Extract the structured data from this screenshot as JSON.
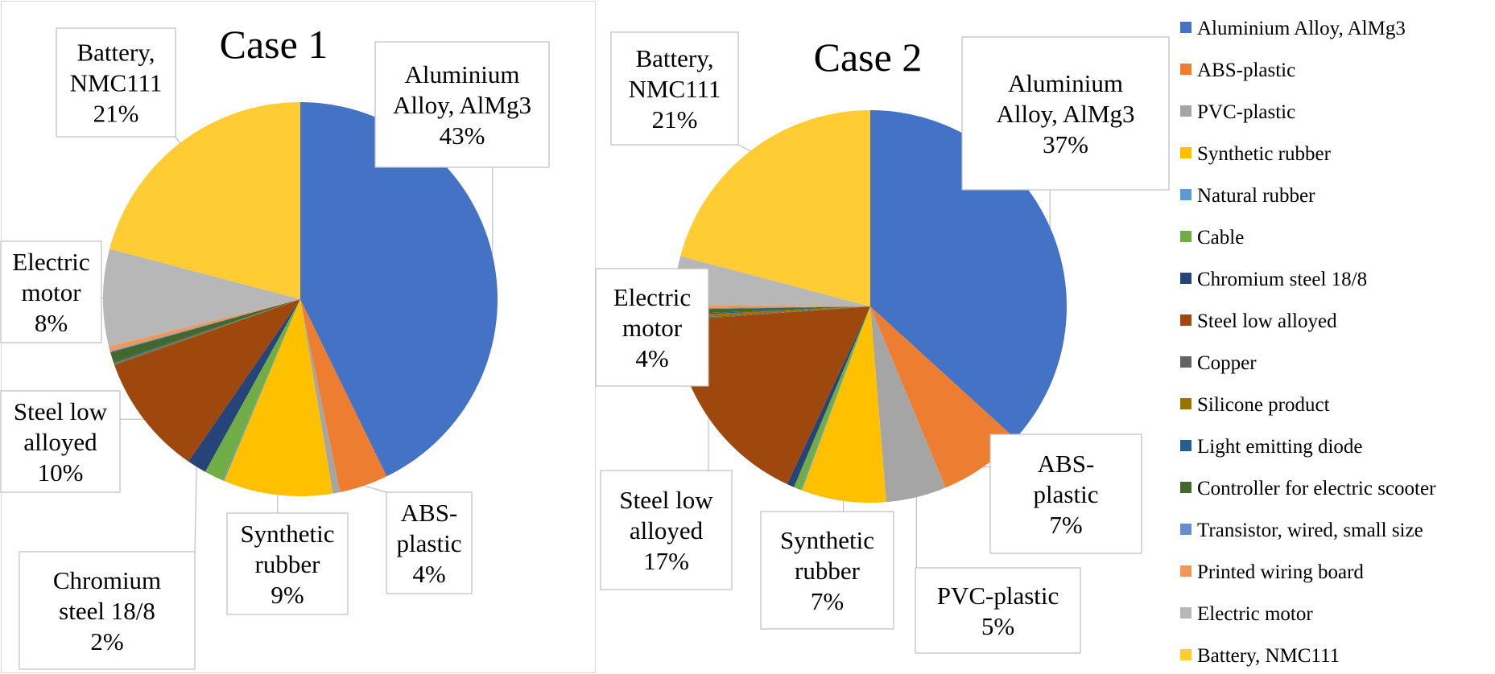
{
  "colors": {
    "Aluminium Alloy, AlMg3": "#4472c4",
    "ABS-plastic": "#ed7d31",
    "PVC-plastic": "#a5a5a5",
    "Synthetic rubber": "#ffc000",
    "Natural rubber": "#5b9bd5",
    "Cable": "#70ad47",
    "Chromium steel 18/8": "#264478",
    "Steel low alloyed": "#9e480e",
    "Copper": "#636363",
    "Silicone product": "#997300",
    "Light emitting diode": "#255e91",
    "Controller for electric scooter": "#43682b",
    "Transistor, wired, small size": "#698ed0",
    "Printed wiring board": "#f1975a",
    "Electric motor": "#b7b7b7",
    "Battery, NMC111": "#ffcd33"
  },
  "chart_data": [
    {
      "type": "pie",
      "title": "Case 1",
      "categories": [
        "Aluminium Alloy, AlMg3",
        "ABS-plastic",
        "PVC-plastic",
        "Synthetic rubber",
        "Natural rubber",
        "Cable",
        "Chromium steel 18/8",
        "Steel low alloyed",
        "Copper",
        "Silicone product",
        "Light emitting diode",
        "Controller for electric scooter",
        "Transistor, wired, small size",
        "Printed wiring board",
        "Electric motor",
        "Battery, NMC111"
      ],
      "values": [
        43,
        4,
        0.6,
        9,
        0.1,
        1.6,
        1.6,
        10,
        0.1,
        0.1,
        0.1,
        0.8,
        0.1,
        0.4,
        8,
        21
      ],
      "labels": [
        {
          "lines": [
            "Aluminium",
            "Alloy, AlMg3",
            "43%"
          ]
        },
        {
          "lines": [
            "ABS-",
            "plastic",
            "4%"
          ]
        },
        {
          "lines": [
            "Synthetic",
            "rubber",
            "9%"
          ]
        },
        {
          "lines": [
            "Chromium",
            "steel 18/8",
            "2%"
          ]
        },
        {
          "lines": [
            "Steel low",
            "alloyed",
            "10%"
          ]
        },
        {
          "lines": [
            "Electric",
            "motor",
            "8%"
          ]
        },
        {
          "lines": [
            "Battery,",
            "NMC111",
            "21%"
          ]
        }
      ]
    },
    {
      "type": "pie",
      "title": "Case 2",
      "categories": [
        "Aluminium Alloy, AlMg3",
        "ABS-plastic",
        "PVC-plastic",
        "Synthetic rubber",
        "Natural rubber",
        "Cable",
        "Chromium steel 18/8",
        "Steel low alloyed",
        "Copper",
        "Silicone product",
        "Light emitting diode",
        "Controller for electric scooter",
        "Transistor, wired, small size",
        "Printed wiring board",
        "Electric motor",
        "Battery, NMC111"
      ],
      "values": [
        37,
        7,
        5,
        7,
        0.1,
        0.6,
        0.6,
        17,
        0.1,
        0.3,
        0.1,
        0.4,
        0.1,
        0.3,
        4,
        21
      ],
      "labels": [
        {
          "lines": [
            "Aluminium",
            "Alloy, AlMg3",
            "37%"
          ]
        },
        {
          "lines": [
            "ABS-",
            "plastic",
            "7%"
          ]
        },
        {
          "lines": [
            "PVC-plastic",
            "5%"
          ]
        },
        {
          "lines": [
            "Synthetic",
            "rubber",
            "7%"
          ]
        },
        {
          "lines": [
            "Steel low",
            "alloyed",
            "17%"
          ]
        },
        {
          "lines": [
            "Electric",
            "motor",
            "4%"
          ]
        },
        {
          "lines": [
            "Battery,",
            "NMC111",
            "21%"
          ]
        }
      ]
    }
  ],
  "legend": {
    "position": "right",
    "entries": [
      "Aluminium Alloy, AlMg3",
      "ABS-plastic",
      "PVC-plastic",
      "Synthetic rubber",
      "Natural rubber",
      "Cable",
      "Chromium steel 18/8",
      "Steel low alloyed",
      "Copper",
      "Silicone product",
      "Light emitting diode",
      "Controller for electric scooter",
      "Transistor, wired, small size",
      "Printed wiring board",
      "Electric motor",
      "Battery, NMC111"
    ]
  }
}
